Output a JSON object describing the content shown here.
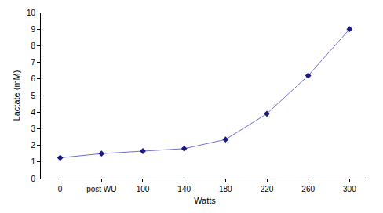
{
  "chart_data": {
    "type": "line",
    "x_label": "Watts",
    "y_label": "Lactate (mM)",
    "categories": [
      "0",
      "post WU",
      "100",
      "140",
      "180",
      "220",
      "260",
      "300"
    ],
    "values": [
      1.25,
      1.5,
      1.65,
      1.8,
      2.35,
      3.9,
      6.2,
      9.0
    ],
    "color": "#6f6fd8",
    "marker": "diamond",
    "line_style": "solid",
    "ylim": [
      0,
      10
    ],
    "yticks": [
      0,
      1,
      2,
      3,
      4,
      5,
      6,
      7,
      8,
      9,
      10
    ],
    "grid": false
  }
}
